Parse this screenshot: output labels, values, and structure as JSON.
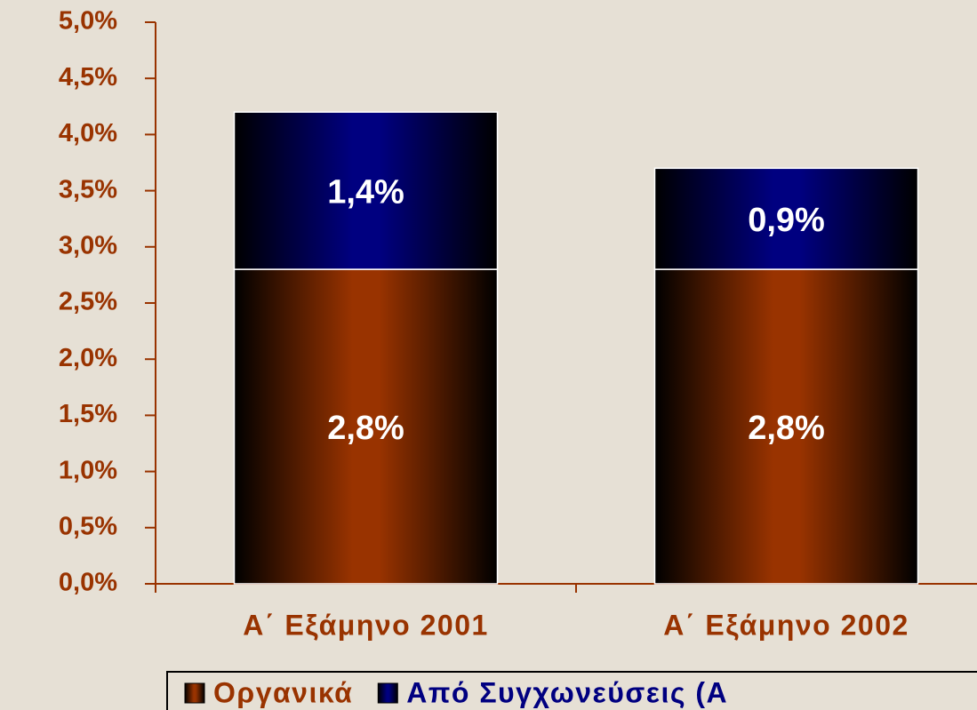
{
  "chart_data": {
    "type": "stacked_bar",
    "categories": [
      "Α΄ Εξάμηνο 2001",
      "Α΄ Εξάμηνο 2002"
    ],
    "series": [
      {
        "name": "Οργανικά",
        "color": "#993300",
        "values": [
          2.8,
          2.8
        ],
        "value_labels": [
          "2,8%",
          "2,8%"
        ]
      },
      {
        "name": "Από Συγχωνεύσεις (Α",
        "color": "#000080",
        "values": [
          1.4,
          0.9
        ],
        "value_labels": [
          "1,4%",
          "0,9%"
        ]
      }
    ],
    "ylim": [
      0,
      5
    ],
    "yticks": [
      {
        "value": 0,
        "label": "0,0%"
      },
      {
        "value": 0.5,
        "label": "0,5%"
      },
      {
        "value": 1,
        "label": "1,0%"
      },
      {
        "value": 1.5,
        "label": "1,5%"
      },
      {
        "value": 2,
        "label": "2,0%"
      },
      {
        "value": 2.5,
        "label": "2,5%"
      },
      {
        "value": 3,
        "label": "3,0%"
      },
      {
        "value": 3.5,
        "label": "3,5%"
      },
      {
        "value": 4,
        "label": "4,0%"
      },
      {
        "value": 4.5,
        "label": "4,5%"
      },
      {
        "value": 5,
        "label": "5,0%"
      }
    ],
    "grid": false,
    "legend": "bottom"
  }
}
